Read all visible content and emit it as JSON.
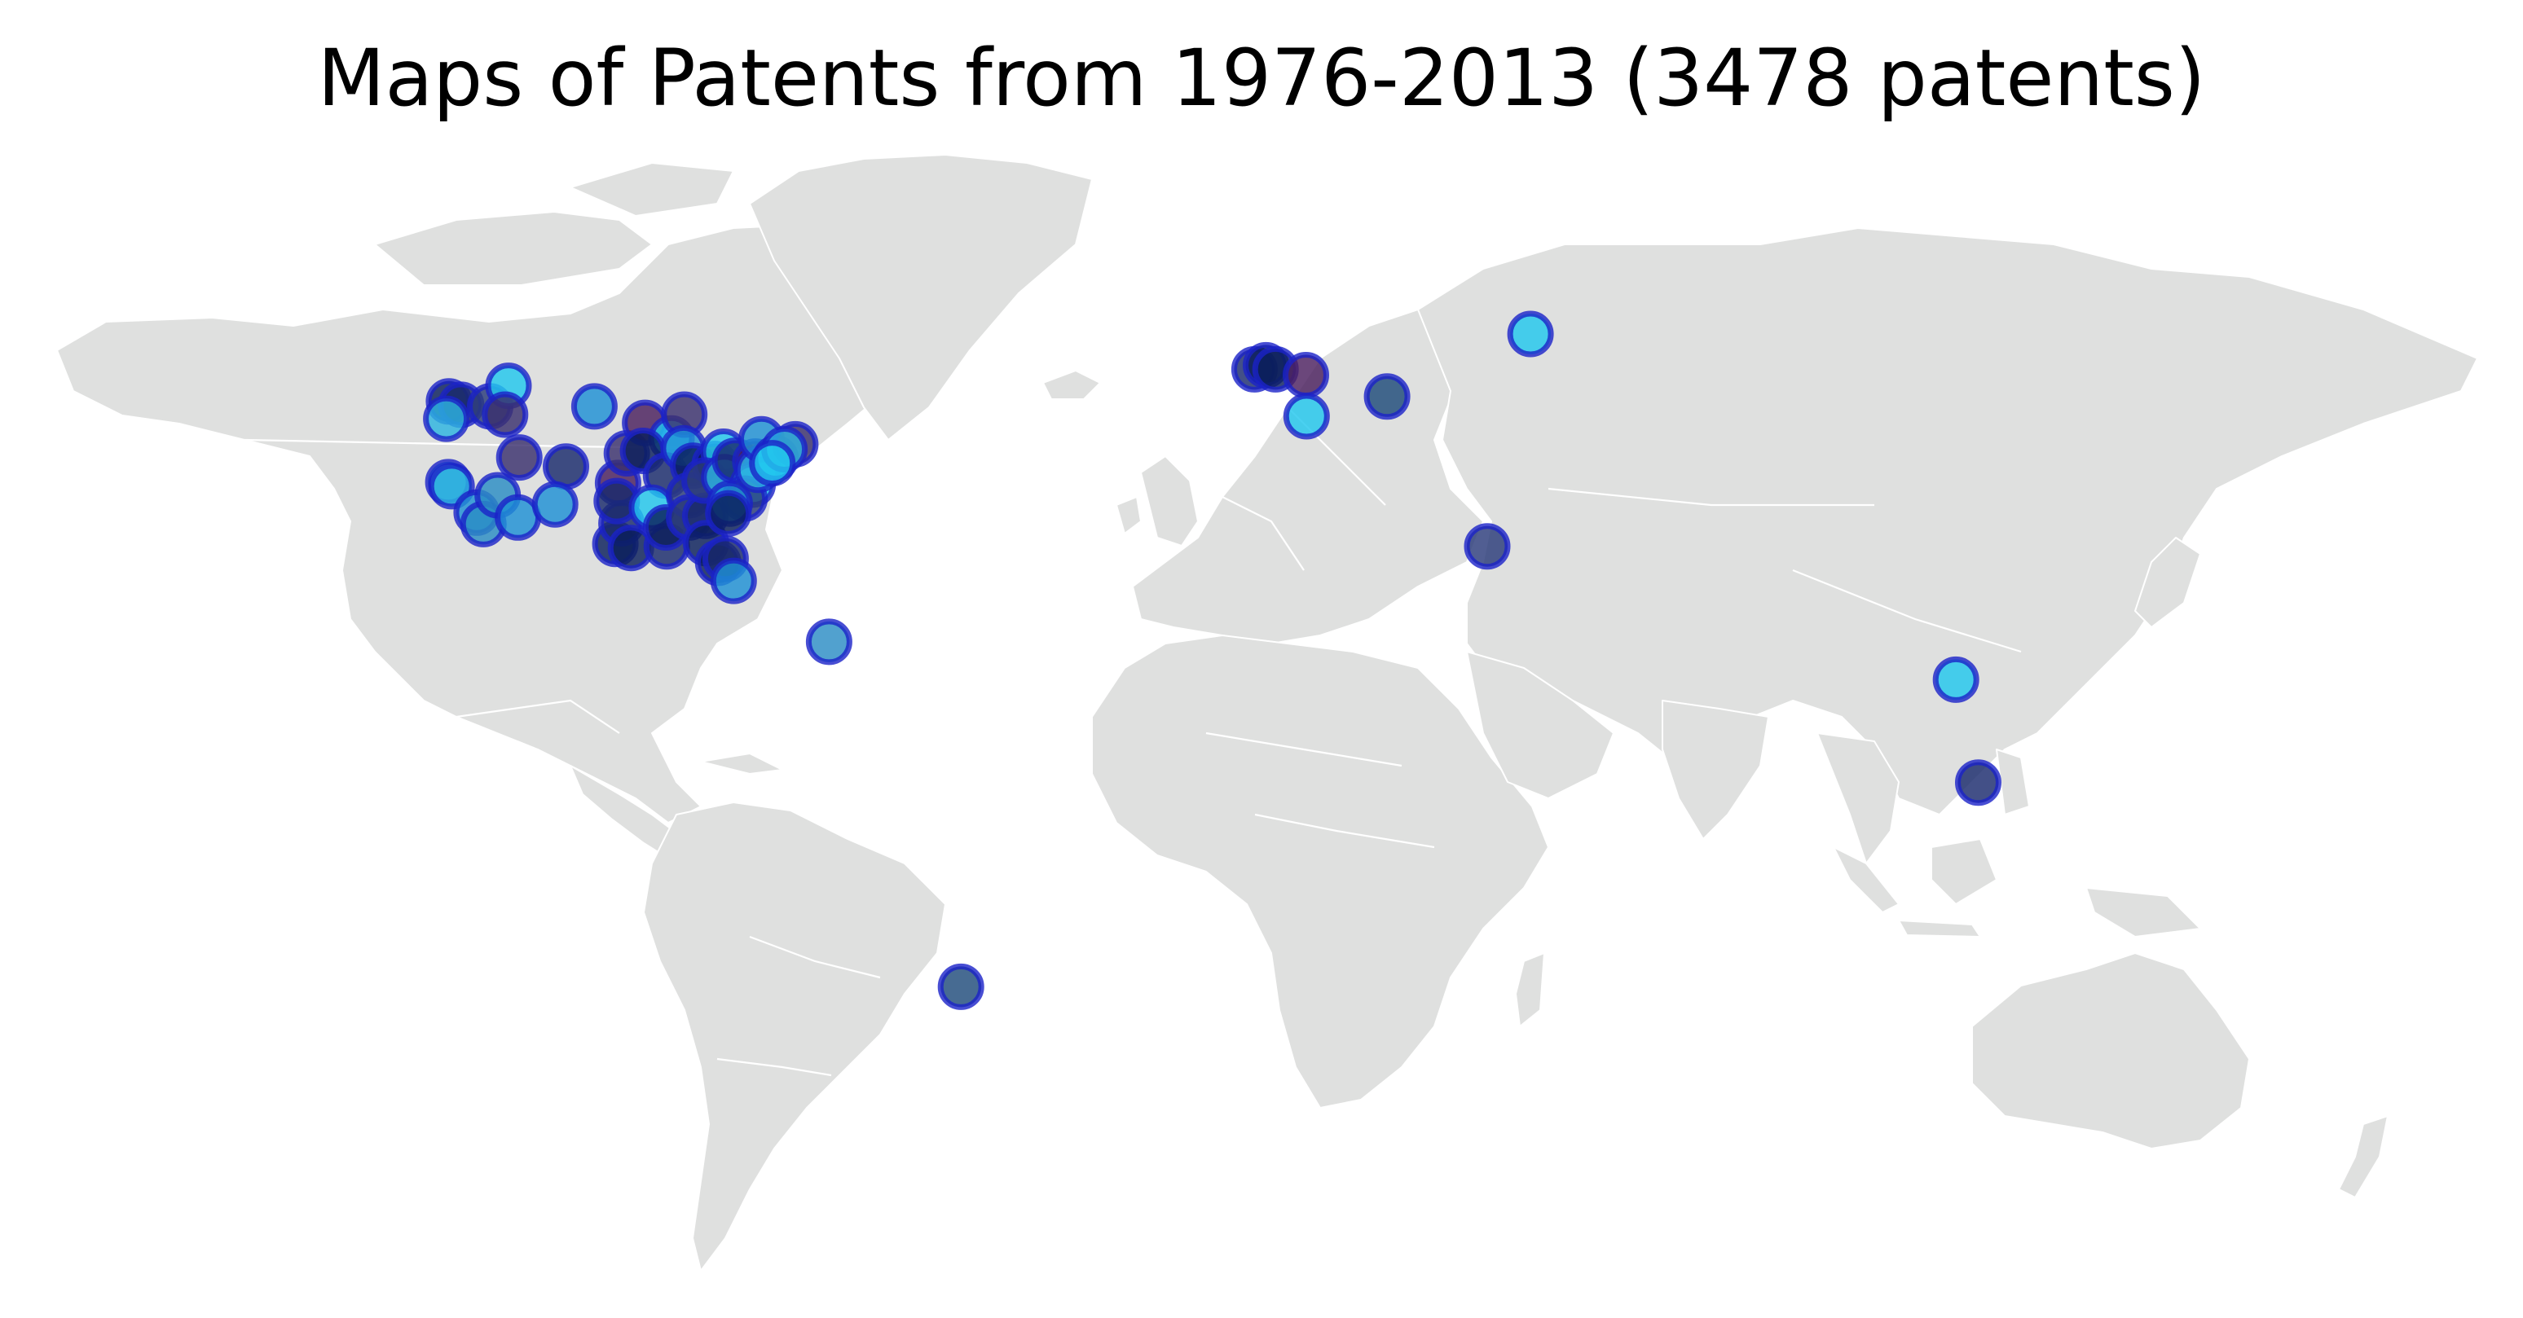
{
  "title": "Maps of Patents from 1976-2013 (3478 patents)",
  "colors": {
    "land": "#dfe0df",
    "borders": "#ffffff",
    "marker_fill_palette": [
      "#0b1f5c",
      "#1a2a6c",
      "#2b3b7a",
      "#3b2f6e",
      "#4a1f5e",
      "#1e90d6",
      "#22c7ee",
      "#2db3e0"
    ],
    "marker_edge": "#1a22c8"
  },
  "map_data": {
    "projection": "equirectangular",
    "marker_type": "circle",
    "points": [
      {
        "region": "USA-WA",
        "lon": -122.3,
        "lat": 47.6,
        "fill": "#0b1f5c"
      },
      {
        "region": "USA-WA",
        "lon": -120.5,
        "lat": 47.2,
        "fill": "#1a2a6c"
      },
      {
        "region": "USA-OR",
        "lon": -122.7,
        "lat": 45.5,
        "fill": "#2db3e0"
      },
      {
        "region": "USA-ID",
        "lon": -116.2,
        "lat": 47.0,
        "fill": "#2b3b7a"
      },
      {
        "region": "USA-MT",
        "lon": -113.5,
        "lat": 49.5,
        "fill": "#22c7ee"
      },
      {
        "region": "USA-ID",
        "lon": -114.0,
        "lat": 46.0,
        "fill": "#3b2f6e"
      },
      {
        "region": "USA-CA",
        "lon": -122.4,
        "lat": 37.8,
        "fill": "#1e90d6"
      },
      {
        "region": "USA-CA",
        "lon": -121.9,
        "lat": 37.3,
        "fill": "#2db3e0"
      },
      {
        "region": "USA-CA",
        "lon": -118.2,
        "lat": 34.1,
        "fill": "#1e90d6"
      },
      {
        "region": "USA-CA",
        "lon": -117.2,
        "lat": 32.7,
        "fill": "#2b8cc4"
      },
      {
        "region": "USA-NV",
        "lon": -115.1,
        "lat": 36.2,
        "fill": "#2b8cc4"
      },
      {
        "region": "USA-UT",
        "lon": -111.9,
        "lat": 40.8,
        "fill": "#3b2f6e"
      },
      {
        "region": "USA-AZ",
        "lon": -112.1,
        "lat": 33.5,
        "fill": "#1e90d6"
      },
      {
        "region": "USA-ND",
        "lon": -100.8,
        "lat": 47.0,
        "fill": "#1e90d6"
      },
      {
        "region": "USA-CO",
        "lon": -105.0,
        "lat": 39.7,
        "fill": "#1a2a6c"
      },
      {
        "region": "USA-NM",
        "lon": -106.6,
        "lat": 35.1,
        "fill": "#1e90d6"
      },
      {
        "region": "USA-KS",
        "lon": -97.3,
        "lat": 37.7,
        "fill": "#4a1f5e"
      },
      {
        "region": "USA-NE",
        "lon": -96.0,
        "lat": 41.3,
        "fill": "#3b2f6e"
      },
      {
        "region": "USA-TX",
        "lon": -97.7,
        "lat": 30.3,
        "fill": "#0b1f5c"
      },
      {
        "region": "USA-TX",
        "lon": -96.8,
        "lat": 32.8,
        "fill": "#1a2a6c"
      },
      {
        "region": "USA-TX",
        "lon": -95.4,
        "lat": 29.8,
        "fill": "#0b1f5c"
      },
      {
        "region": "USA-OK",
        "lon": -97.5,
        "lat": 35.5,
        "fill": "#1a2a6c"
      },
      {
        "region": "USA-MN",
        "lon": -93.3,
        "lat": 45.0,
        "fill": "#4a1f5e"
      },
      {
        "region": "USA-WI",
        "lon": -89.4,
        "lat": 43.1,
        "fill": "#22c7ee"
      },
      {
        "region": "USA-MI",
        "lon": -87.5,
        "lat": 46.0,
        "fill": "#3b2f6e"
      },
      {
        "region": "USA-IA",
        "lon": -93.6,
        "lat": 41.6,
        "fill": "#0b1f5c"
      },
      {
        "region": "USA-MO",
        "lon": -90.2,
        "lat": 38.6,
        "fill": "#1a2a6c"
      },
      {
        "region": "USA-IL",
        "lon": -87.6,
        "lat": 41.9,
        "fill": "#1e90d6"
      },
      {
        "region": "USA-IN",
        "lon": -86.2,
        "lat": 39.8,
        "fill": "#0b1f5c"
      },
      {
        "region": "USA-AR",
        "lon": -92.3,
        "lat": 34.7,
        "fill": "#22c7ee"
      },
      {
        "region": "USA-LA",
        "lon": -90.1,
        "lat": 30.0,
        "fill": "#1a2a6c"
      },
      {
        "region": "USA-MS",
        "lon": -90.2,
        "lat": 32.3,
        "fill": "#0b1f5c"
      },
      {
        "region": "USA-TN",
        "lon": -86.8,
        "lat": 36.2,
        "fill": "#2b3b7a"
      },
      {
        "region": "USA-AL",
        "lon": -86.8,
        "lat": 33.5,
        "fill": "#2b3b7a"
      },
      {
        "region": "USA-GA",
        "lon": -84.4,
        "lat": 33.7,
        "fill": "#1a2a6c"
      },
      {
        "region": "USA-FL",
        "lon": -84.3,
        "lat": 30.4,
        "fill": "#0b1f5c"
      },
      {
        "region": "USA-FL",
        "lon": -82.5,
        "lat": 28.0,
        "fill": "#0b1f5c"
      },
      {
        "region": "USA-FL",
        "lon": -81.4,
        "lat": 28.5,
        "fill": "#1a2a6c"
      },
      {
        "region": "USA-FL",
        "lon": -80.2,
        "lat": 25.8,
        "fill": "#1e90d6"
      },
      {
        "region": "USA-OH",
        "lon": -83.0,
        "lat": 40.0,
        "fill": "#0b1f5c"
      },
      {
        "region": "USA-OH",
        "lon": -81.7,
        "lat": 41.5,
        "fill": "#22c7ee"
      },
      {
        "region": "USA-KY",
        "lon": -84.5,
        "lat": 38.0,
        "fill": "#2b3b7a"
      },
      {
        "region": "USA-WV",
        "lon": -81.6,
        "lat": 38.4,
        "fill": "#2db3e0"
      },
      {
        "region": "USA-PA",
        "lon": -80.0,
        "lat": 40.4,
        "fill": "#1a2a6c"
      },
      {
        "region": "USA-PA",
        "lon": -77.0,
        "lat": 40.3,
        "fill": "#4a1f5e"
      },
      {
        "region": "USA-PA",
        "lon": -75.2,
        "lat": 40.0,
        "fill": "#1e90d6"
      },
      {
        "region": "USA-VA",
        "lon": -77.4,
        "lat": 37.5,
        "fill": "#22c7ee"
      },
      {
        "region": "USA-NC",
        "lon": -78.6,
        "lat": 35.8,
        "fill": "#2b3b7a"
      },
      {
        "region": "USA-NC",
        "lon": -80.8,
        "lat": 35.2,
        "fill": "#1e90d6"
      },
      {
        "region": "USA-SC",
        "lon": -81.0,
        "lat": 34.0,
        "fill": "#0b1f5c"
      },
      {
        "region": "USA-MD",
        "lon": -76.6,
        "lat": 39.3,
        "fill": "#2db3e0"
      },
      {
        "region": "USA-NY",
        "lon": -76.1,
        "lat": 43.0,
        "fill": "#1e90d6"
      },
      {
        "region": "USA-NY",
        "lon": -74.0,
        "lat": 40.7,
        "fill": "#22c7ee"
      },
      {
        "region": "USA-MA",
        "lon": -71.1,
        "lat": 42.4,
        "fill": "#3b2f6e"
      },
      {
        "region": "USA-CT",
        "lon": -72.7,
        "lat": 41.8,
        "fill": "#2db3e0"
      },
      {
        "region": "USA-NJ",
        "lon": -74.5,
        "lat": 40.1,
        "fill": "#22c7ee"
      },
      {
        "region": "Puerto Rico",
        "lon": -66.1,
        "lat": 18.4,
        "fill": "#2b8cc4"
      },
      {
        "region": "Brazil",
        "lon": -46.6,
        "lat": -23.5,
        "fill": "#1f4a7a"
      },
      {
        "region": "United Kingdom",
        "lon": -3.2,
        "lat": 51.5,
        "fill": "#1a2a6c"
      },
      {
        "region": "United Kingdom",
        "lon": -1.5,
        "lat": 52.0,
        "fill": "#0b1f5c"
      },
      {
        "region": "United Kingdom",
        "lon": -0.1,
        "lat": 51.5,
        "fill": "#0b1f5c"
      },
      {
        "region": "Belgium",
        "lon": 4.4,
        "lat": 50.8,
        "fill": "#4a1f5e"
      },
      {
        "region": "France",
        "lon": 4.5,
        "lat": 45.8,
        "fill": "#22c7ee"
      },
      {
        "region": "Austria",
        "lon": 16.4,
        "lat": 48.2,
        "fill": "#1f4a7a"
      },
      {
        "region": "Russia",
        "lon": 37.6,
        "lat": 55.8,
        "fill": "#22c7ee"
      },
      {
        "region": "Egypt",
        "lon": 31.2,
        "lat": 30.0,
        "fill": "#2b3b7a"
      },
      {
        "region": "Thailand",
        "lon": 100.5,
        "lat": 13.8,
        "fill": "#22c7ee"
      },
      {
        "region": "Singapore",
        "lon": 103.8,
        "lat": 1.3,
        "fill": "#1a2a6c"
      }
    ]
  }
}
